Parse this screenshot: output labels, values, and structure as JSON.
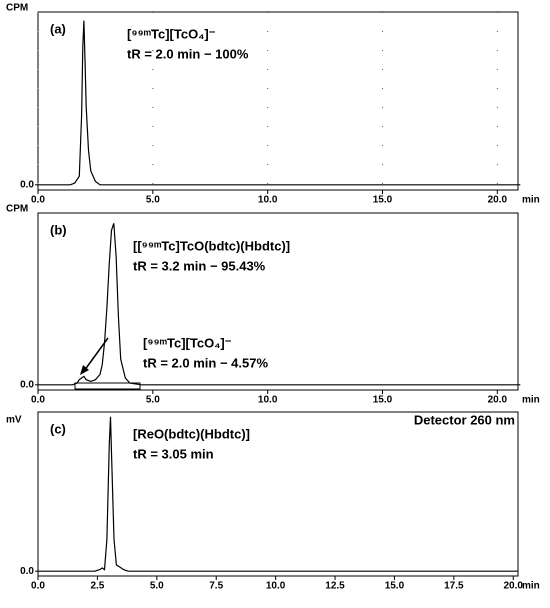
{
  "chart_data": [
    {
      "type": "line",
      "panel": "(a)",
      "ylabel": "CPM",
      "xlabel": "min",
      "annotations": [
        "[⁹⁹ᵐTc][TcO₄]⁻",
        "tR = 2.0 min − 100%"
      ],
      "x": [
        0,
        1.4,
        1.6,
        1.8,
        1.9,
        1.95,
        2.0,
        2.05,
        2.1,
        2.2,
        2.3,
        2.5,
        2.7,
        3.0,
        21
      ],
      "values": [
        0,
        0,
        1,
        5,
        40,
        80,
        95,
        70,
        45,
        20,
        8,
        2,
        0,
        0,
        0
      ],
      "color": "#000000",
      "grid": true,
      "xlim": [
        0,
        20.9
      ],
      "ylim": [
        -3,
        100
      ],
      "xticks": [
        {
          "value": 0,
          "label": "0.0"
        },
        {
          "value": 5,
          "label": "5.0"
        },
        {
          "value": 10,
          "label": "10.0"
        },
        {
          "value": 15,
          "label": "15.0"
        },
        {
          "value": 20,
          "label": "20.0"
        }
      ],
      "yticks": [
        {
          "value": 0,
          "label": "0.0"
        }
      ]
    },
    {
      "type": "line",
      "panel": "(b)",
      "ylabel": "CPM",
      "xlabel": "min",
      "annotations": [
        "[[⁹⁹ᵐTc]TcO(bdtc)(Hbdtc)]",
        "tR = 3.2 min − 95.43%",
        "[⁹⁹ᵐTc][TcO₄]⁻",
        "tR = 2.0 min − 4.57%"
      ],
      "x": [
        0,
        1.5,
        1.7,
        1.8,
        1.9,
        2.0,
        2.1,
        2.3,
        2.5,
        2.7,
        2.8,
        2.9,
        3.0,
        3.1,
        3.2,
        3.3,
        3.4,
        3.5,
        3.6,
        3.8,
        4.0,
        4.5,
        21
      ],
      "values": [
        0,
        0,
        1,
        3,
        4,
        5,
        3,
        2,
        3,
        6,
        12,
        25,
        45,
        70,
        90,
        94,
        75,
        40,
        15,
        4,
        1,
        0,
        0
      ],
      "color": "#000000",
      "grid": false,
      "xlim": [
        0,
        20.9
      ],
      "ylim": [
        -3,
        100
      ],
      "xticks": [
        {
          "value": 0,
          "label": "0.0"
        },
        {
          "value": 5,
          "label": "5.0"
        },
        {
          "value": 10,
          "label": "10.0"
        },
        {
          "value": 15,
          "label": "15.0"
        },
        {
          "value": 20,
          "label": "20.0"
        }
      ],
      "yticks": [
        {
          "value": 0,
          "label": "0.0"
        }
      ]
    },
    {
      "type": "line",
      "panel": "(c)",
      "ylabel": "mV",
      "xlabel": "min",
      "annotations": [
        "[ReO(bdtc)(Hbdtc)]",
        "tR = 3.05 min",
        "Detector 260 nm"
      ],
      "x": [
        0,
        2.4,
        2.6,
        2.7,
        2.8,
        2.9,
        3.0,
        3.05,
        3.1,
        3.2,
        3.3,
        3.5,
        3.6,
        3.8,
        4.0,
        20.2
      ],
      "values": [
        0,
        0,
        1,
        2,
        1,
        20,
        80,
        97,
        70,
        20,
        4,
        2,
        1,
        0,
        0,
        0
      ],
      "color": "#000000",
      "grid": false,
      "xlim": [
        0,
        20.2
      ],
      "ylim": [
        -3,
        100
      ],
      "xticks": [
        {
          "value": 0,
          "label": "0.0"
        },
        {
          "value": 2.5,
          "label": "2.5"
        },
        {
          "value": 5,
          "label": "5.0"
        },
        {
          "value": 7.5,
          "label": "7.5"
        },
        {
          "value": 10,
          "label": "10.0"
        },
        {
          "value": 12.5,
          "label": "12.5"
        },
        {
          "value": 15,
          "label": "15.0"
        },
        {
          "value": 17.5,
          "label": "17.5"
        },
        {
          "value": 20,
          "label": "20.0"
        }
      ],
      "yticks": [
        {
          "value": 0,
          "label": "0.0"
        }
      ]
    }
  ]
}
